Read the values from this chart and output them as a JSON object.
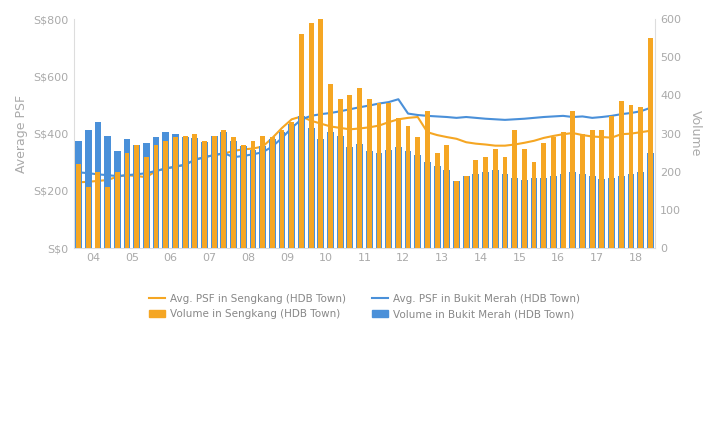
{
  "x_labels": [
    "04",
    "05",
    "06",
    "07",
    "08",
    "09",
    "10",
    "11",
    "12",
    "13",
    "14",
    "15",
    "16",
    "17",
    "18"
  ],
  "sengkang_psf": [
    230,
    232,
    235,
    238,
    250,
    255,
    252,
    248,
    270,
    278,
    285,
    290,
    310,
    318,
    325,
    330,
    340,
    345,
    348,
    355,
    385,
    420,
    450,
    460,
    445,
    435,
    425,
    420,
    415,
    418,
    422,
    428,
    440,
    450,
    455,
    458,
    405,
    395,
    388,
    382,
    370,
    365,
    362,
    358,
    358,
    362,
    368,
    375,
    385,
    392,
    398,
    402,
    395,
    390,
    388,
    386,
    398,
    400,
    405,
    410
  ],
  "bukit_merah_psf": [
    265,
    262,
    258,
    255,
    252,
    255,
    258,
    262,
    270,
    278,
    285,
    292,
    308,
    318,
    325,
    332,
    318,
    322,
    328,
    335,
    355,
    385,
    420,
    450,
    462,
    468,
    472,
    478,
    485,
    492,
    498,
    505,
    510,
    520,
    470,
    465,
    462,
    460,
    458,
    455,
    458,
    455,
    452,
    450,
    448,
    450,
    452,
    455,
    458,
    460,
    462,
    458,
    460,
    455,
    458,
    462,
    468,
    472,
    478,
    490
  ],
  "sengkang_volume": [
    220,
    160,
    200,
    160,
    200,
    250,
    270,
    240,
    270,
    280,
    290,
    295,
    300,
    280,
    295,
    310,
    290,
    270,
    280,
    295,
    290,
    310,
    330,
    560,
    590,
    610,
    430,
    390,
    400,
    420,
    390,
    380,
    380,
    340,
    320,
    290,
    360,
    250,
    270,
    175,
    190,
    230,
    240,
    260,
    240,
    310,
    260,
    225,
    275,
    290,
    305,
    360,
    300,
    310,
    310,
    345,
    385,
    375,
    370,
    550
  ],
  "bukit_merah_volume": [
    280,
    310,
    330,
    295,
    255,
    285,
    270,
    275,
    290,
    305,
    298,
    292,
    288,
    278,
    295,
    305,
    282,
    268,
    258,
    268,
    285,
    305,
    325,
    345,
    315,
    285,
    305,
    295,
    265,
    272,
    255,
    250,
    258,
    265,
    255,
    245,
    225,
    215,
    205,
    175,
    188,
    195,
    200,
    205,
    195,
    185,
    178,
    185,
    185,
    190,
    195,
    200,
    195,
    188,
    182,
    185,
    190,
    195,
    200,
    248
  ],
  "psf_color_sengkang": "#F5A623",
  "psf_color_bukit_merah": "#4A90D9",
  "vol_color_sengkang": "#F5A623",
  "vol_color_bukit_merah": "#4A90D9",
  "ylabel_left": "Average PSF",
  "ylabel_right": "Volume",
  "ylim_left": [
    0,
    800
  ],
  "ylim_right": [
    0,
    600
  ],
  "yticks_left": [
    0,
    200,
    400,
    600,
    800
  ],
  "yticks_left_labels": [
    "S$0",
    "S$200",
    "S$400",
    "S$600",
    "S$800"
  ],
  "yticks_right": [
    0,
    100,
    200,
    300,
    400,
    500,
    600
  ],
  "background_color": "#ffffff"
}
